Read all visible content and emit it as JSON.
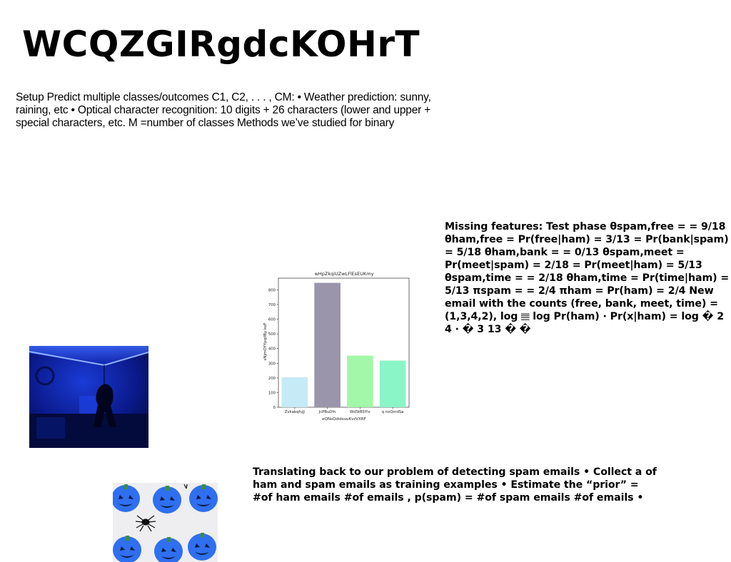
{
  "title": "WCQZGIRgdcKOHrT",
  "setup_text": "Setup Predict multiple classes/outcomes C1, C2, . . . , CM: • Weather prediction: sunny, raining, etc • Optical character recognition: 10 digits + 26 characters (lower and upper + special characters, etc. M =number of classes Methods we’ve studied for binary",
  "missing_text": "Missing features: Test phase θspam,free = = 9/18 θham,free = Pr(free|ham) = 3/13 = Pr(bank|spam) = 5/18 θham,bank = = 0/13 θspam,meet = Pr(meet|spam) = 2/18 = Pr(meet|ham) = 5/13 θspam,time = = 2/18 θham,time = Pr(time|ham) = 5/13 πspam = = 2/4 πham = Pr(ham) = 2/4 New email with the counts (free, bank, meet, time) = (1,3,4,2), log 𝄙 log Pr(ham) · Pr(x|ham) = log � 2 4 · � 3 13 � �",
  "translating_text": "Translating back to our problem of detecting spam emails • Collect a of ham and spam emails as training examples • Estimate the “prior” = #of ham emails #of emails , p(spam) = #of spam emails #of emails •",
  "chart_data": {
    "type": "bar",
    "title": "wHpZkqiUZwLFlEsEUKmy",
    "xlabel": "eQNsQdidsuuKvzVXRF",
    "ylabel": "sNjmOYYpqiIBy koF",
    "categories": [
      "ZvkabqfuJJ",
      "JcPBuDfn",
      "WdStBSYlv",
      "q nxQmdSa"
    ],
    "values": [
      205,
      848,
      352,
      318
    ],
    "colors": [
      "#c6eaf6",
      "#9a95ab",
      "#a3f7a8",
      "#8af5c6"
    ],
    "ylim": [
      0,
      880
    ],
    "yticks": [
      0,
      100,
      200,
      300,
      400,
      500,
      600,
      700,
      800
    ]
  }
}
